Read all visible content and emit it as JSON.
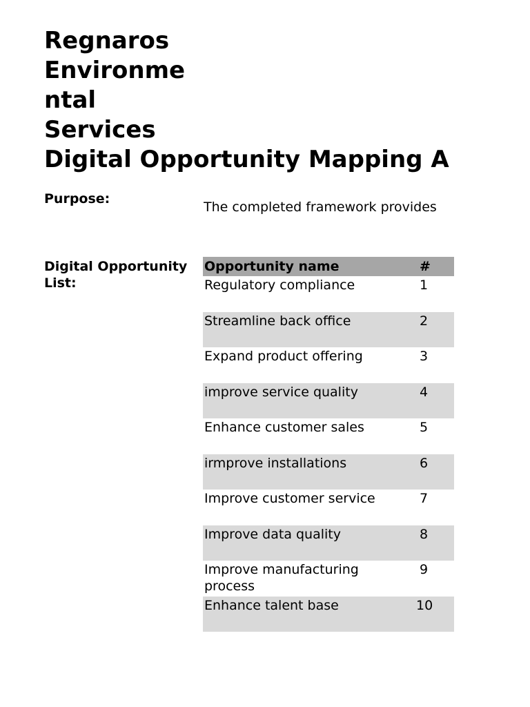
{
  "title_lines": [
    "Regnaros",
    "Environme",
    "ntal",
    "Services",
    "Digital Opportunity Mapping A"
  ],
  "purpose_label": "Purpose:",
  "purpose_text": "The completed framework provides",
  "list_label": "Digital Opportunity List:",
  "table": {
    "headers": [
      "Opportunity name",
      "#"
    ],
    "rows": [
      {
        "name": "Regulatory compliance",
        "num": "1"
      },
      {
        "name": "Streamline back office",
        "num": "2"
      },
      {
        "name": "Expand product offering",
        "num": "3"
      },
      {
        "name": "improve service quality",
        "num": "4"
      },
      {
        "name": "Enhance customer sales",
        "num": "5"
      },
      {
        "name": "irmprove installations",
        "num": "6"
      },
      {
        "name": "Improve customer service",
        "num": "7"
      },
      {
        "name": "Improve data quality",
        "num": "8"
      },
      {
        "name": "Improve manufacturing process",
        "num": "9"
      },
      {
        "name": "Enhance talent base",
        "num": "10"
      }
    ]
  }
}
